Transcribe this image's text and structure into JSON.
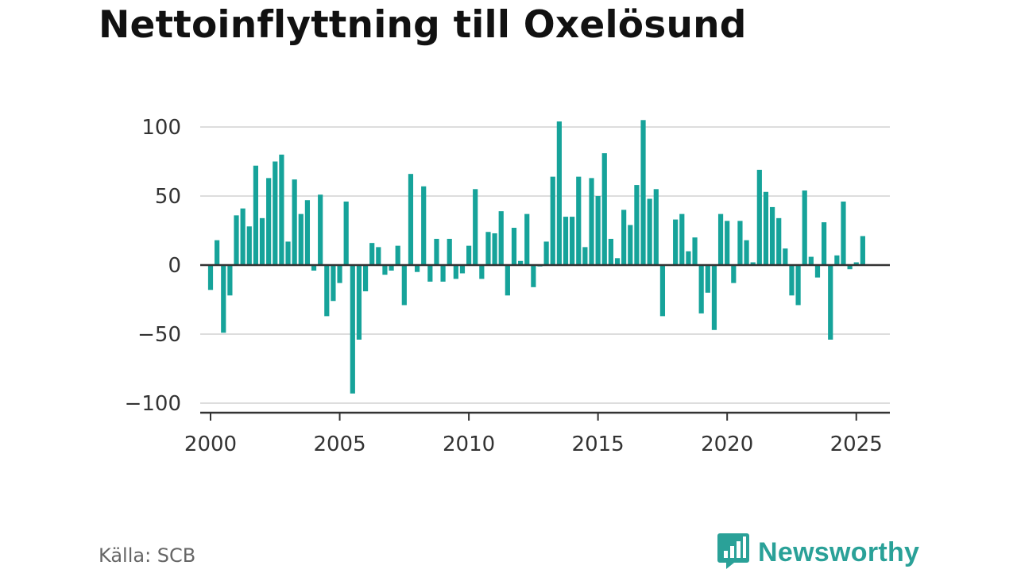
{
  "header": {
    "title": "Nettoinflyttning till Oxelösund"
  },
  "footer": {
    "source": "Källa: SCB",
    "brand": "Newsworthy",
    "brand_icon": "bar-chart-speech-bubble-icon"
  },
  "colors": {
    "bar": "#16a39a",
    "axis": "#333333",
    "grid": "#dddddd",
    "brand": "#2aa198"
  },
  "chart_data": {
    "type": "bar",
    "title": "Nettoinflyttning till Oxelösund",
    "xlabel": "",
    "ylabel": "",
    "ylim": [
      -100,
      105
    ],
    "xlim": [
      1999.6,
      2026.3
    ],
    "yticks": [
      100,
      50,
      0,
      -50,
      -100
    ],
    "ytick_labels": [
      "100",
      "50",
      "0",
      "−50",
      "−100"
    ],
    "xticks": [
      2000,
      2005,
      2010,
      2015,
      2020,
      2025
    ],
    "xtick_labels": [
      "2000",
      "2005",
      "2010",
      "2015",
      "2020",
      "2025"
    ],
    "grid": true,
    "x_start": "2000 Q1",
    "frequency": "quarterly",
    "values": [
      -18,
      18,
      -49,
      -22,
      36,
      41,
      28,
      72,
      34,
      63,
      75,
      80,
      17,
      62,
      37,
      47,
      -4,
      51,
      -37,
      -26,
      -13,
      46,
      -93,
      -54,
      -19,
      16,
      13,
      -7,
      -4,
      14,
      -29,
      66,
      -5,
      57,
      -12,
      19,
      -12,
      19,
      -10,
      -6,
      14,
      55,
      -10,
      24,
      23,
      39,
      -22,
      27,
      3,
      37,
      -16,
      -1,
      17,
      64,
      104,
      35,
      35,
      64,
      13,
      63,
      50,
      81,
      19,
      5,
      40,
      29,
      58,
      105,
      48,
      55,
      -37,
      0,
      33,
      37,
      10,
      20,
      -35,
      -20,
      -47,
      37,
      32,
      -13,
      32,
      18,
      2,
      69,
      53,
      42,
      34,
      12,
      -22,
      -29,
      54,
      6,
      -9,
      31,
      -54,
      7,
      46,
      -3,
      2,
      21
    ]
  }
}
